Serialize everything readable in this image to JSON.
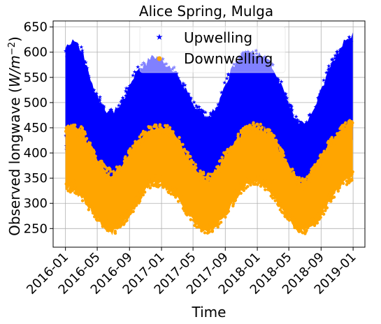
{
  "chart_data": {
    "type": "scatter",
    "title": "Alice Spring, Mulga",
    "xlabel": "Time",
    "ylabel": "Observed longwave (W/m^-2)",
    "ylabel_parts": {
      "main": "Observed longwave (",
      "unit_base": "W/m",
      "unit_exp": "−2",
      "close": ")"
    },
    "xlim": [
      "2015-11-15",
      "2019-02-15"
    ],
    "ylim": [
      213,
      662
    ],
    "grid": true,
    "legend_position": "top-center",
    "x_ticks": [
      "2016-01",
      "2016-05",
      "2016-09",
      "2017-01",
      "2017-05",
      "2017-09",
      "2018-01",
      "2018-05",
      "2018-09",
      "2019-01"
    ],
    "y_ticks": [
      250,
      300,
      350,
      400,
      450,
      500,
      550,
      600,
      650
    ],
    "series": [
      {
        "name": "Upwelling",
        "color": "#0000ff",
        "marker": "star",
        "envelope": [
          {
            "x": "2016-01-01",
            "min": 405,
            "max": 618
          },
          {
            "x": "2016-02-01",
            "min": 395,
            "max": 628
          },
          {
            "x": "2016-03-01",
            "min": 380,
            "max": 615
          },
          {
            "x": "2016-04-01",
            "min": 360,
            "max": 560
          },
          {
            "x": "2016-05-01",
            "min": 340,
            "max": 520
          },
          {
            "x": "2016-06-01",
            "min": 330,
            "max": 495
          },
          {
            "x": "2016-07-01",
            "min": 325,
            "max": 488
          },
          {
            "x": "2016-08-01",
            "min": 335,
            "max": 505
          },
          {
            "x": "2016-09-01",
            "min": 355,
            "max": 545
          },
          {
            "x": "2016-10-01",
            "min": 375,
            "max": 575
          },
          {
            "x": "2016-11-01",
            "min": 395,
            "max": 585
          },
          {
            "x": "2016-12-01",
            "min": 405,
            "max": 600
          },
          {
            "x": "2017-01-01",
            "min": 400,
            "max": 590
          },
          {
            "x": "2017-02-01",
            "min": 395,
            "max": 580
          },
          {
            "x": "2017-03-01",
            "min": 380,
            "max": 565
          },
          {
            "x": "2017-04-01",
            "min": 355,
            "max": 535
          },
          {
            "x": "2017-05-01",
            "min": 335,
            "max": 505
          },
          {
            "x": "2017-06-01",
            "min": 325,
            "max": 488
          },
          {
            "x": "2017-07-01",
            "min": 318,
            "max": 480
          },
          {
            "x": "2017-08-01",
            "min": 330,
            "max": 500
          },
          {
            "x": "2017-09-01",
            "min": 350,
            "max": 545
          },
          {
            "x": "2017-10-01",
            "min": 375,
            "max": 580
          },
          {
            "x": "2017-11-01",
            "min": 395,
            "max": 600
          },
          {
            "x": "2017-12-01",
            "min": 405,
            "max": 605
          },
          {
            "x": "2018-01-01",
            "min": 410,
            "max": 605
          },
          {
            "x": "2018-02-01",
            "min": 400,
            "max": 595
          },
          {
            "x": "2018-03-01",
            "min": 385,
            "max": 580
          },
          {
            "x": "2018-04-01",
            "min": 365,
            "max": 545
          },
          {
            "x": "2018-05-01",
            "min": 345,
            "max": 505
          },
          {
            "x": "2018-06-01",
            "min": 325,
            "max": 470
          },
          {
            "x": "2018-07-01",
            "min": 318,
            "max": 462
          },
          {
            "x": "2018-08-01",
            "min": 330,
            "max": 490
          },
          {
            "x": "2018-09-01",
            "min": 350,
            "max": 530
          },
          {
            "x": "2018-10-01",
            "min": 375,
            "max": 575
          },
          {
            "x": "2018-11-01",
            "min": 395,
            "max": 605
          },
          {
            "x": "2018-12-01",
            "min": 410,
            "max": 630
          },
          {
            "x": "2018-12-31",
            "min": 420,
            "max": 645
          }
        ]
      },
      {
        "name": "Downwelling",
        "color": "#ffa500",
        "marker": "circle",
        "envelope": [
          {
            "x": "2016-01-01",
            "min": 325,
            "max": 455
          },
          {
            "x": "2016-02-01",
            "min": 320,
            "max": 462
          },
          {
            "x": "2016-03-01",
            "min": 305,
            "max": 455
          },
          {
            "x": "2016-04-01",
            "min": 285,
            "max": 425
          },
          {
            "x": "2016-05-01",
            "min": 262,
            "max": 395
          },
          {
            "x": "2016-06-01",
            "min": 245,
            "max": 375
          },
          {
            "x": "2016-07-01",
            "min": 235,
            "max": 365
          },
          {
            "x": "2016-08-01",
            "min": 250,
            "max": 385
          },
          {
            "x": "2016-09-01",
            "min": 270,
            "max": 410
          },
          {
            "x": "2016-10-01",
            "min": 295,
            "max": 430
          },
          {
            "x": "2016-11-01",
            "min": 320,
            "max": 450
          },
          {
            "x": "2016-12-01",
            "min": 335,
            "max": 460
          },
          {
            "x": "2017-01-01",
            "min": 330,
            "max": 458
          },
          {
            "x": "2017-02-01",
            "min": 320,
            "max": 455
          },
          {
            "x": "2017-03-01",
            "min": 305,
            "max": 440
          },
          {
            "x": "2017-04-01",
            "min": 280,
            "max": 410
          },
          {
            "x": "2017-05-01",
            "min": 258,
            "max": 385
          },
          {
            "x": "2017-06-01",
            "min": 243,
            "max": 365
          },
          {
            "x": "2017-07-01",
            "min": 238,
            "max": 358
          },
          {
            "x": "2017-08-01",
            "min": 250,
            "max": 378
          },
          {
            "x": "2017-09-01",
            "min": 270,
            "max": 405
          },
          {
            "x": "2017-10-01",
            "min": 295,
            "max": 425
          },
          {
            "x": "2017-11-01",
            "min": 320,
            "max": 445
          },
          {
            "x": "2017-12-01",
            "min": 335,
            "max": 462
          },
          {
            "x": "2018-01-01",
            "min": 335,
            "max": 460
          },
          {
            "x": "2018-02-01",
            "min": 325,
            "max": 455
          },
          {
            "x": "2018-03-01",
            "min": 310,
            "max": 440
          },
          {
            "x": "2018-04-01",
            "min": 285,
            "max": 410
          },
          {
            "x": "2018-05-01",
            "min": 262,
            "max": 380
          },
          {
            "x": "2018-06-01",
            "min": 245,
            "max": 355
          },
          {
            "x": "2018-07-01",
            "min": 238,
            "max": 348
          },
          {
            "x": "2018-08-01",
            "min": 250,
            "max": 372
          },
          {
            "x": "2018-09-01",
            "min": 270,
            "max": 400
          },
          {
            "x": "2018-10-01",
            "min": 295,
            "max": 425
          },
          {
            "x": "2018-11-01",
            "min": 320,
            "max": 445
          },
          {
            "x": "2018-12-01",
            "min": 335,
            "max": 460
          },
          {
            "x": "2018-12-31",
            "min": 345,
            "max": 468
          }
        ]
      }
    ]
  }
}
